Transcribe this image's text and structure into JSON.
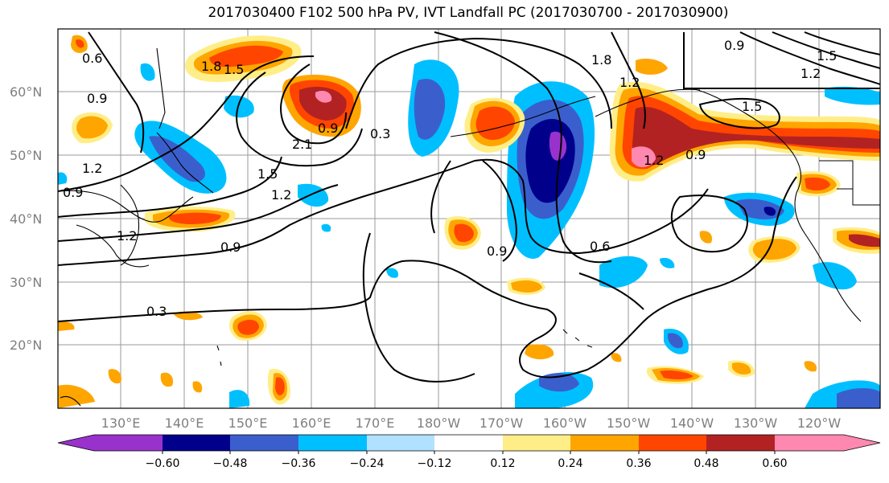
{
  "title": "2017030400 F102 500 hPa PV, IVT Landfall PC (2017030700 - 2017030900)",
  "lat_labels": [
    "60°N",
    "50°N",
    "40°N",
    "30°N",
    "20°N"
  ],
  "lon_labels": [
    "130°E",
    "140°E",
    "150°E",
    "160°E",
    "170°E",
    "180°W",
    "170°W",
    "160°W",
    "150°W",
    "140°W",
    "130°W",
    "120°W"
  ],
  "contour_labels": [
    "0.6",
    "0.9",
    "1.8",
    "1.5",
    "0.9",
    "1.2",
    "0.9",
    "1.2",
    "2.1",
    "1.5",
    "1.2",
    "0.9",
    "0.3",
    "0.3",
    "0.9",
    "0.6",
    "1.8",
    "1.2",
    "1.5",
    "1.2",
    "0.9",
    "0.9",
    "1.5",
    "1.2"
  ],
  "colorbar": {
    "colors": [
      "#9932cc",
      "#00008b",
      "#3a5fcd",
      "#00bfff",
      "#b0e2ff",
      "#ffffff",
      "#ffee88",
      "#ffa500",
      "#ff4500",
      "#b22222",
      "#ff88b0"
    ],
    "ticks": [
      "−0.60",
      "−0.48",
      "−0.36",
      "−0.24",
      "−0.12",
      "0.12",
      "0.24",
      "0.36",
      "0.48",
      "0.60"
    ]
  },
  "colors": {
    "frame": "#000000",
    "grid": "#9a9a9a",
    "contour": "#000000"
  }
}
